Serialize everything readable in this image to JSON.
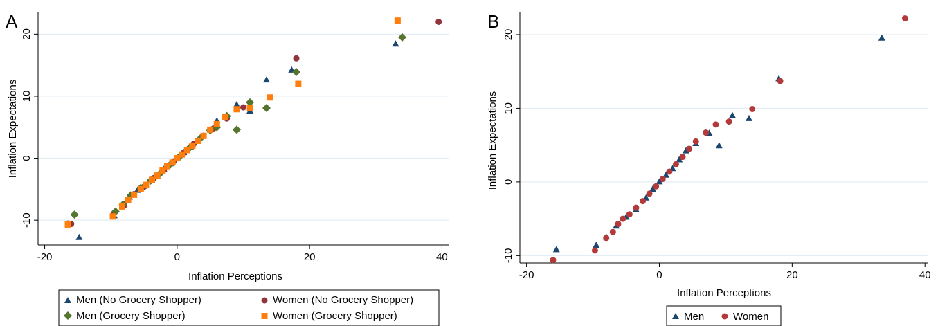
{
  "panels": [
    {
      "letter": "A",
      "chart_data": {
        "type": "scatter",
        "title": "",
        "xlabel": "Inflation Perceptions",
        "ylabel": "Inflation Expectations",
        "xlim": [
          -21,
          41
        ],
        "ylim": [
          -14,
          23.5
        ],
        "xticks": [
          -20,
          0,
          20,
          40
        ],
        "yticks": [
          -10,
          0,
          10,
          20
        ],
        "grid": "horizontal",
        "legend_position": "bottom",
        "series": [
          {
            "name": "Men (No Grocery Shopper)",
            "marker": "triangle",
            "color": "#1a476f",
            "points": [
              [
                -14.8,
                -12.8
              ],
              [
                -16.5,
                -10.6
              ],
              [
                -9.5,
                -9.3
              ],
              [
                -8,
                -7.5
              ],
              [
                -7.2,
                -6.3
              ],
              [
                -6,
                -5.2
              ],
              [
                -5,
                -4.5
              ],
              [
                -4,
                -3.6
              ],
              [
                -3,
                -2.9
              ],
              [
                -2,
                -1.8
              ],
              [
                -1,
                -0.9
              ],
              [
                0,
                0
              ],
              [
                1,
                0.9
              ],
              [
                2,
                1.8
              ],
              [
                3,
                2.8
              ],
              [
                4,
                3.6
              ],
              [
                5,
                4.6
              ],
              [
                6,
                6
              ],
              [
                7.5,
                6.8
              ],
              [
                9,
                8.6
              ],
              [
                11,
                7.6
              ],
              [
                13.5,
                12.6
              ],
              [
                17.3,
                14.2
              ],
              [
                33,
                18.4
              ]
            ]
          },
          {
            "name": "Women (No Grocery Shopper)",
            "marker": "circle",
            "color": "#90353b",
            "points": [
              [
                -16,
                -10.6
              ],
              [
                -9.7,
                -9.2
              ],
              [
                -8,
                -7.6
              ],
              [
                -6.5,
                -5.8
              ],
              [
                -5,
                -4.6
              ],
              [
                -3.5,
                -3.2
              ],
              [
                -2,
                -1.9
              ],
              [
                -0.5,
                -0.5
              ],
              [
                1,
                0.9
              ],
              [
                2.5,
                2.3
              ],
              [
                4,
                3.6
              ],
              [
                5.5,
                4.8
              ],
              [
                7.5,
                6.4
              ],
              [
                10,
                8.2
              ],
              [
                18,
                16.1
              ],
              [
                39.5,
                22
              ]
            ]
          },
          {
            "name": "Men (Grocery Shopper)",
            "marker": "diamond",
            "color": "#55752f",
            "points": [
              [
                -15.5,
                -9.1
              ],
              [
                -9.3,
                -8.6
              ],
              [
                -8.2,
                -7.5
              ],
              [
                -7,
                -6
              ],
              [
                -5.5,
                -4.8
              ],
              [
                -4,
                -3.6
              ],
              [
                -2.5,
                -2.4
              ],
              [
                -1,
                -1
              ],
              [
                0.5,
                0.4
              ],
              [
                2,
                1.8
              ],
              [
                3.5,
                3.2
              ],
              [
                5,
                4.5
              ],
              [
                6,
                5
              ],
              [
                7.5,
                6.8
              ],
              [
                9,
                4.6
              ],
              [
                11,
                9
              ],
              [
                13.5,
                8.1
              ],
              [
                18,
                13.9
              ],
              [
                34,
                19.5
              ]
            ]
          },
          {
            "name": "Women (Grocery Shopper)",
            "marker": "square",
            "color": "#ff7f0e",
            "points": [
              [
                -16.5,
                -10.7
              ],
              [
                -9.7,
                -9.4
              ],
              [
                -8.3,
                -7.8
              ],
              [
                -7.4,
                -6.7
              ],
              [
                -6.5,
                -5.9
              ],
              [
                -5.5,
                -5
              ],
              [
                -4.7,
                -4.3
              ],
              [
                -3.8,
                -3.5
              ],
              [
                -3,
                -2.8
              ],
              [
                -2.2,
                -2
              ],
              [
                -1.5,
                -1.3
              ],
              [
                -0.7,
                -0.7
              ],
              [
                0,
                0
              ],
              [
                0.7,
                0.6
              ],
              [
                1.5,
                1.3
              ],
              [
                2.3,
                2
              ],
              [
                3.2,
                2.8
              ],
              [
                4,
                3.6
              ],
              [
                5,
                4.6
              ],
              [
                6,
                5.5
              ],
              [
                7.2,
                6.6
              ],
              [
                9,
                7.9
              ],
              [
                11,
                8.1
              ],
              [
                14,
                9.8
              ],
              [
                18.3,
                12
              ],
              [
                33.3,
                22.2
              ]
            ]
          }
        ]
      },
      "legend": [
        {
          "label": "Men (No Grocery Shopper)"
        },
        {
          "label": "Women (No Grocery Shopper)"
        },
        {
          "label": "Men (Grocery Shopper)"
        },
        {
          "label": "Women (Grocery Shopper)"
        }
      ]
    },
    {
      "letter": "B",
      "chart_data": {
        "type": "scatter",
        "title": "",
        "xlabel": "Inflation Perceptions",
        "ylabel": "Inflation Expectations",
        "xlim": [
          -21,
          40.5
        ],
        "ylim": [
          -11,
          23
        ],
        "xticks": [
          -20,
          0,
          20,
          40
        ],
        "yticks": [
          -10,
          0,
          10,
          20
        ],
        "grid": "horizontal",
        "legend_position": "bottom",
        "series": [
          {
            "name": "Men",
            "marker": "triangle",
            "color": "#1a476f",
            "points": [
              [
                -15.5,
                -9.2
              ],
              [
                -9.5,
                -8.6
              ],
              [
                -8,
                -7.5
              ],
              [
                -6.5,
                -6
              ],
              [
                -5,
                -4.8
              ],
              [
                -3.5,
                -3.8
              ],
              [
                -2,
                -2.2
              ],
              [
                -1,
                -1
              ],
              [
                0,
                0
              ],
              [
                1,
                0.9
              ],
              [
                2,
                1.8
              ],
              [
                3,
                3
              ],
              [
                4,
                4.2
              ],
              [
                5.5,
                5.2
              ],
              [
                7.5,
                6.6
              ],
              [
                9,
                4.9
              ],
              [
                11,
                9
              ],
              [
                13.5,
                8.6
              ],
              [
                18,
                14
              ],
              [
                33.5,
                19.5
              ]
            ]
          },
          {
            "name": "Women",
            "marker": "circle",
            "color": "#b23a3a",
            "points": [
              [
                -16,
                -10.6
              ],
              [
                -9.7,
                -9.3
              ],
              [
                -8,
                -7.6
              ],
              [
                -7,
                -6.8
              ],
              [
                -6.2,
                -5.7
              ],
              [
                -5.5,
                -5
              ],
              [
                -4.5,
                -4.4
              ],
              [
                -3.5,
                -3.5
              ],
              [
                -2.5,
                -2.6
              ],
              [
                -1.5,
                -1.6
              ],
              [
                -0.5,
                -0.6
              ],
              [
                0.5,
                0.4
              ],
              [
                1.5,
                1.4
              ],
              [
                2.5,
                2.4
              ],
              [
                3.5,
                3.4
              ],
              [
                4.5,
                4.5
              ],
              [
                5.5,
                5.5
              ],
              [
                7,
                6.7
              ],
              [
                8.5,
                7.8
              ],
              [
                10.5,
                8.2
              ],
              [
                14,
                9.9
              ],
              [
                18.2,
                13.7
              ],
              [
                37,
                22.2
              ]
            ]
          }
        ]
      },
      "legend": [
        {
          "label": "Men"
        },
        {
          "label": "Women"
        }
      ]
    }
  ]
}
